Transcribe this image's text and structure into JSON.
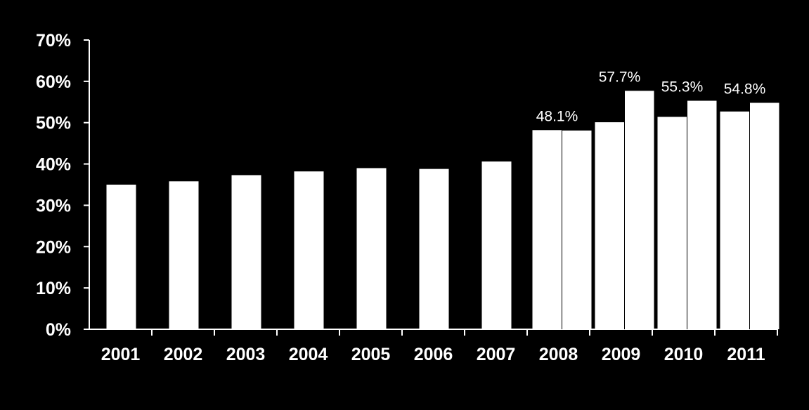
{
  "chart_data": {
    "type": "bar",
    "categories": [
      "2001",
      "2002",
      "2003",
      "2004",
      "2005",
      "2006",
      "2007",
      "2008",
      "2009",
      "2010",
      "2011"
    ],
    "series": [
      {
        "values": [
          35.0,
          35.8,
          37.3,
          38.2,
          39.0,
          38.8,
          40.6,
          48.2,
          50.1,
          51.4,
          52.7
        ]
      },
      {
        "values": [
          null,
          null,
          null,
          null,
          null,
          null,
          null,
          48.1,
          57.7,
          55.3,
          54.8
        ]
      }
    ],
    "data_labels": [
      "",
      "",
      "",
      "",
      "",
      "",
      "",
      "48.1%",
      "57.7%",
      "55.3%",
      "54.8%"
    ],
    "y_ticks": [
      "0%",
      "10%",
      "20%",
      "30%",
      "40%",
      "50%",
      "60%",
      "70%"
    ],
    "ylim": [
      0,
      70
    ],
    "title": "",
    "xlabel": "",
    "ylabel": "",
    "grid": false,
    "colors": {
      "background": "#000000",
      "bars": "#ffffff",
      "axis": "#ffffff",
      "text": "#ffffff"
    }
  }
}
